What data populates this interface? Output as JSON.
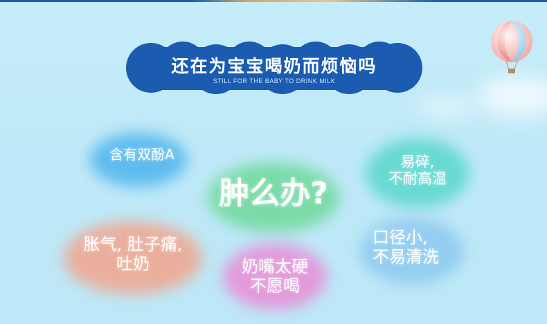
{
  "banner": {
    "title": "还在为宝宝喝奶而烦恼吗",
    "subtitle": "STILL FOR THE BABY TO DRINK MILK",
    "color": "#1b5cb0"
  },
  "center": {
    "text": "肿么办?"
  },
  "bubbles": {
    "bpa": {
      "text": "含有双酚A",
      "color": "#4fb4ec"
    },
    "fragile_l1": "易碎,",
    "fragile_l2": "不耐高温",
    "fragile_color": "#52d6c8",
    "colic_l1": "胀气, 肚子痛,",
    "colic_l2": "吐奶",
    "colic_color": "#f2a48c",
    "mouth_l1": "口径小,",
    "mouth_l2": "不易清洗",
    "mouth_color": "#8cc8f0",
    "nipple_l1": "奶嘴太硬",
    "nipple_l2": "不愿喝",
    "nipple_color": "#e98cd6",
    "center_color": "#6fd89a"
  }
}
